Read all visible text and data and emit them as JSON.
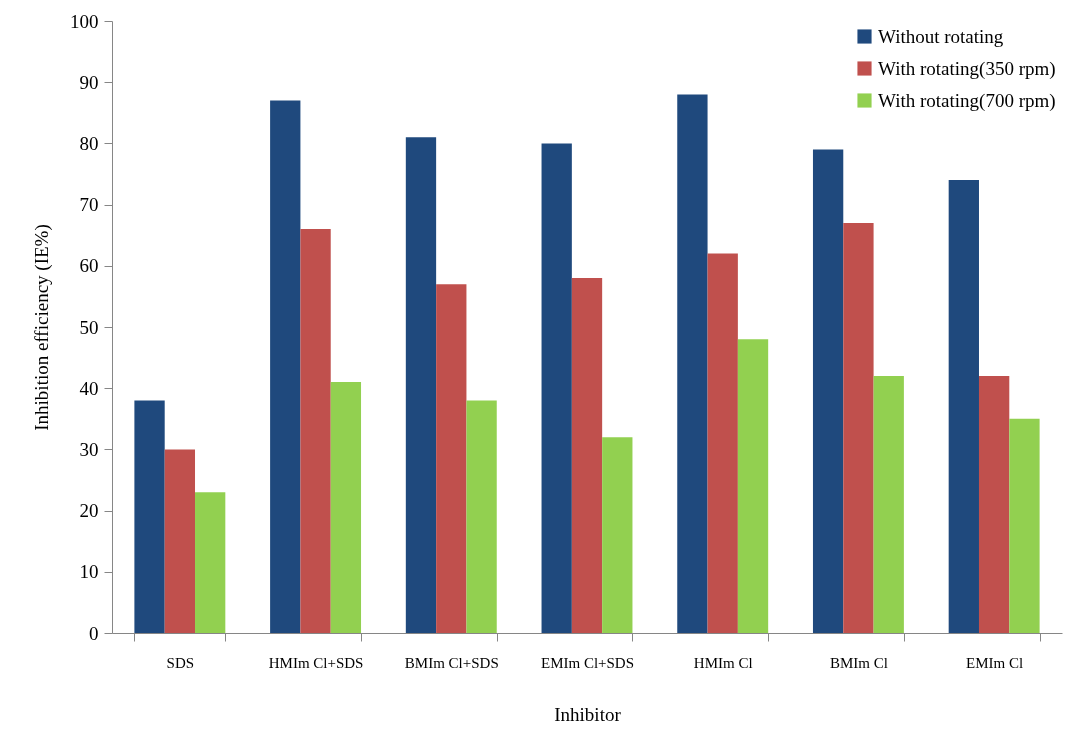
{
  "chart_data": {
    "type": "bar",
    "xlabel": "Inhibitor",
    "ylabel": "Inhibition efficiency (IE%)",
    "categories": [
      "SDS",
      "HMIm Cl+SDS",
      "BMIm Cl+SDS",
      "EMIm Cl+SDS",
      "HMIm Cl",
      "BMIm Cl",
      "EMIm Cl"
    ],
    "series": [
      {
        "name": "Without rotating",
        "color": "#1f497d",
        "values": [
          38,
          87,
          81,
          80,
          88,
          79,
          74
        ]
      },
      {
        "name": "With rotating(350 rpm)",
        "color": "#c0504d",
        "values": [
          30,
          66,
          57,
          58,
          62,
          67,
          42
        ]
      },
      {
        "name": "With rotating(700 rpm)",
        "color": "#92d050",
        "values": [
          23,
          41,
          38,
          32,
          48,
          42,
          35
        ]
      }
    ],
    "ylim": [
      0,
      100
    ],
    "yticks": [
      0,
      10,
      20,
      30,
      40,
      50,
      60,
      70,
      80,
      90,
      100
    ],
    "grid": false,
    "legend": "top right"
  }
}
